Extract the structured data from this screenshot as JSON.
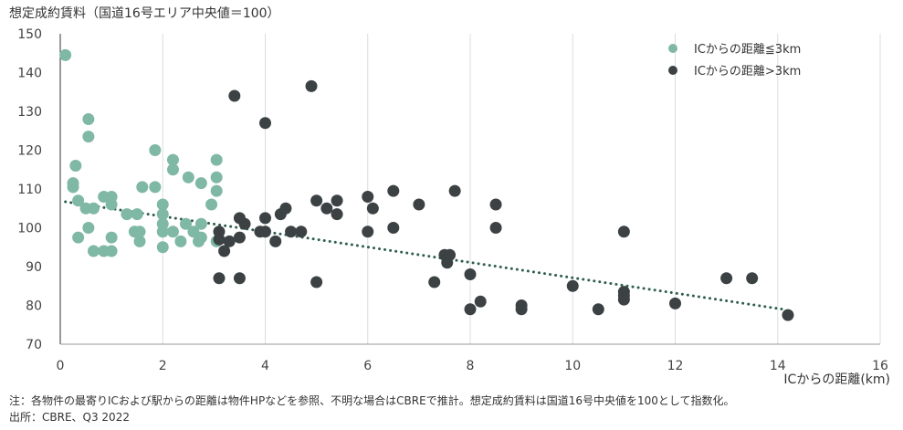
{
  "title": "想定成約賃料（国道16号エリア中央値＝100）",
  "notes": {
    "line1": "注：各物件の最寄りICおよび駅からの距離は物件HPなどを参照、不明な場合はCBREで推計。想定成約賃料は国道16号中央値を100として指数化。",
    "line2": "出所：CBRE、Q3 2022"
  },
  "chart_data": {
    "type": "scatter",
    "title": "想定成約賃料（国道16号エリア中央値＝100）",
    "xlabel": "ICからの距離(km)",
    "ylabel": "",
    "xlim": [
      0,
      16
    ],
    "ylim": [
      70,
      150
    ],
    "xticks": [
      0,
      2,
      4,
      6,
      8,
      10,
      12,
      14,
      16
    ],
    "yticks": [
      70,
      80,
      90,
      100,
      110,
      120,
      130,
      140,
      150
    ],
    "grid": "vertical",
    "legend_position": "top-right",
    "series": [
      {
        "name": "ICからの距離≦3km",
        "color": "#7fb8a4",
        "points": [
          [
            0.1,
            144.5
          ],
          [
            0.3,
            116
          ],
          [
            0.25,
            111.5
          ],
          [
            0.25,
            110.5
          ],
          [
            0.55,
            128
          ],
          [
            0.55,
            123.5
          ],
          [
            0.35,
            107
          ],
          [
            0.5,
            105
          ],
          [
            0.65,
            105
          ],
          [
            0.85,
            108
          ],
          [
            1.0,
            108
          ],
          [
            1.0,
            106
          ],
          [
            0.55,
            100
          ],
          [
            0.35,
            97.5
          ],
          [
            0.65,
            94
          ],
          [
            0.85,
            94
          ],
          [
            1.0,
            94
          ],
          [
            1.0,
            97.5
          ],
          [
            1.3,
            103.5
          ],
          [
            1.5,
            103.5
          ],
          [
            1.45,
            99
          ],
          [
            1.55,
            99
          ],
          [
            1.55,
            96.5
          ],
          [
            1.6,
            110.5
          ],
          [
            1.85,
            110.5
          ],
          [
            1.85,
            120
          ],
          [
            2.0,
            106
          ],
          [
            2.0,
            103.5
          ],
          [
            2.0,
            101
          ],
          [
            2.0,
            99
          ],
          [
            2.0,
            95
          ],
          [
            2.2,
            117.5
          ],
          [
            2.2,
            115
          ],
          [
            2.2,
            99
          ],
          [
            2.35,
            96.5
          ],
          [
            2.45,
            101
          ],
          [
            2.5,
            113
          ],
          [
            2.6,
            99
          ],
          [
            2.7,
            96.5
          ],
          [
            2.75,
            111.5
          ],
          [
            2.75,
            101
          ],
          [
            2.75,
            97.5
          ],
          [
            2.95,
            106
          ],
          [
            3.05,
            117.5
          ],
          [
            3.05,
            113
          ],
          [
            3.05,
            109.5
          ],
          [
            3.05,
            96.5
          ]
        ]
      },
      {
        "name": "ICからの距離>3km",
        "color": "#3c4244",
        "points": [
          [
            3.4,
            134
          ],
          [
            3.1,
            99
          ],
          [
            3.1,
            97
          ],
          [
            3.2,
            94
          ],
          [
            3.3,
            96.5
          ],
          [
            3.1,
            87
          ],
          [
            3.5,
            87
          ],
          [
            3.5,
            102.5
          ],
          [
            3.6,
            101
          ],
          [
            3.5,
            97.5
          ],
          [
            3.9,
            99
          ],
          [
            4.0,
            102.5
          ],
          [
            4.0,
            99
          ],
          [
            4.0,
            127
          ],
          [
            4.2,
            96.5
          ],
          [
            4.3,
            103.5
          ],
          [
            4.4,
            105
          ],
          [
            4.5,
            99
          ],
          [
            4.7,
            99
          ],
          [
            4.9,
            136.5
          ],
          [
            5.0,
            107
          ],
          [
            5.0,
            86
          ],
          [
            5.2,
            105
          ],
          [
            5.4,
            107
          ],
          [
            5.4,
            103.5
          ],
          [
            6.0,
            108
          ],
          [
            6.1,
            105
          ],
          [
            6.0,
            99
          ],
          [
            6.5,
            109.5
          ],
          [
            6.5,
            100
          ],
          [
            7.0,
            106
          ],
          [
            7.3,
            86
          ],
          [
            7.7,
            109.5
          ],
          [
            7.5,
            93
          ],
          [
            7.55,
            91
          ],
          [
            7.6,
            93
          ],
          [
            8.0,
            88
          ],
          [
            8.2,
            81
          ],
          [
            8.0,
            79
          ],
          [
            8.5,
            106
          ],
          [
            8.5,
            100
          ],
          [
            9.0,
            80
          ],
          [
            9.0,
            79
          ],
          [
            10.0,
            85
          ],
          [
            10.5,
            79
          ],
          [
            11.0,
            99
          ],
          [
            11.0,
            83.5
          ],
          [
            11.0,
            82.5
          ],
          [
            11.0,
            81.5
          ],
          [
            12.0,
            80.5
          ],
          [
            13.0,
            87
          ],
          [
            13.5,
            87
          ],
          [
            14.2,
            77.5
          ]
        ]
      }
    ],
    "trendline": {
      "style": "dotted",
      "color": "#2e5e4e",
      "x": [
        0.1,
        14.1
      ],
      "y": [
        106.7,
        79
      ]
    }
  }
}
